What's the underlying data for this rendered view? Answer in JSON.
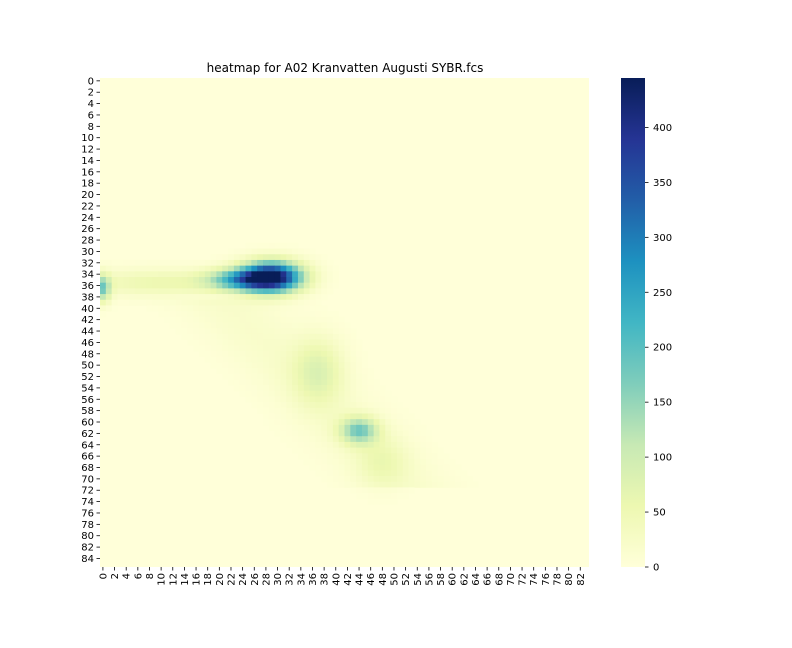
{
  "chart_data": {
    "type": "heatmap",
    "title": "heatmap for A02 Kranvatten Augusti SYBR.fcs",
    "xlabel": "",
    "ylabel": "",
    "n_cols": 84,
    "n_rows": 86,
    "x_tick_labels": [
      "0",
      "2",
      "4",
      "6",
      "8",
      "10",
      "12",
      "14",
      "16",
      "18",
      "20",
      "22",
      "24",
      "26",
      "28",
      "30",
      "32",
      "34",
      "36",
      "38",
      "40",
      "42",
      "44",
      "46",
      "48",
      "50",
      "52",
      "54",
      "56",
      "58",
      "60",
      "62",
      "64",
      "66",
      "68",
      "70",
      "72",
      "74",
      "76",
      "78",
      "80",
      "82"
    ],
    "y_tick_labels": [
      "0",
      "2",
      "4",
      "6",
      "8",
      "10",
      "12",
      "14",
      "16",
      "18",
      "20",
      "22",
      "24",
      "26",
      "28",
      "30",
      "32",
      "34",
      "36",
      "38",
      "40",
      "42",
      "44",
      "46",
      "48",
      "50",
      "52",
      "54",
      "56",
      "58",
      "60",
      "62",
      "64",
      "66",
      "68",
      "70",
      "72",
      "74",
      "76",
      "78",
      "80",
      "82",
      "84"
    ],
    "colorbar": {
      "colormap": "YlGnBu",
      "min": 0,
      "max": 445,
      "ticks": [
        0,
        50,
        100,
        150,
        200,
        250,
        300,
        350,
        400
      ]
    },
    "features": [
      {
        "name": "main-cluster",
        "x": 29,
        "y": 34.5,
        "sx": 3.5,
        "sy": 1.8,
        "peak": 440
      },
      {
        "name": "cluster-shoulder",
        "x": 24,
        "y": 35,
        "sx": 4,
        "sy": 1.3,
        "peak": 210
      },
      {
        "name": "band-horizontal",
        "x": 10,
        "y": 35.5,
        "sx": 10,
        "sy": 1.6,
        "peak": 55
      },
      {
        "name": "left-edge",
        "x": 0,
        "y": 36.5,
        "sx": 0.9,
        "sy": 1.6,
        "peak": 160
      },
      {
        "name": "diagonal-mid",
        "x": 37,
        "y": 51,
        "sx": 3,
        "sy": 4,
        "peak": 70
      },
      {
        "name": "lower-cluster",
        "x": 44,
        "y": 61.5,
        "sx": 2.2,
        "sy": 1.6,
        "peak": 165
      },
      {
        "name": "diagonal-tail",
        "x": 48,
        "y": 67,
        "sx": 3,
        "sy": 3,
        "peak": 40
      }
    ]
  },
  "colors": {
    "background": "#ffffff",
    "heatmap_zero": "#ffffd9",
    "colormap_stops": [
      "#ffffd9",
      "#edf8b1",
      "#c7e9b4",
      "#7fcdbb",
      "#41b6c4",
      "#1d91c0",
      "#225ea8",
      "#253494",
      "#081d58"
    ]
  }
}
